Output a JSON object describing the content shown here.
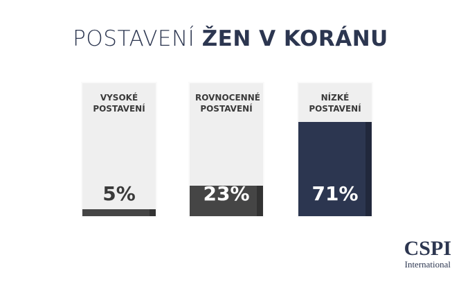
{
  "chart_data": {
    "type": "bar",
    "title": [
      "POSTAVENÍ",
      "ŽEN V KORÁNU"
    ],
    "categories": [
      "VYSOKÉ POSTAVENÍ",
      "ROVNOCENNÉ POSTAVENÍ",
      "NÍZKÉ POSTAVENÍ"
    ],
    "values": [
      5,
      23,
      71
    ],
    "value_labels": [
      "5%",
      "23%",
      "71%"
    ],
    "colors": [
      "#454545",
      "#454545",
      "#2c3650"
    ],
    "ylim": [
      0,
      100
    ]
  },
  "logo": {
    "name": "CSPI",
    "subtitle": "International"
  }
}
